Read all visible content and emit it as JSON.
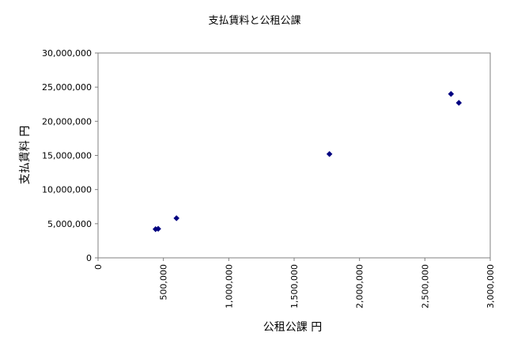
{
  "chart_data": {
    "type": "scatter",
    "title": "支払賃料と公租公課",
    "xlabel": "公租公課 円",
    "ylabel": "支払賃料 円",
    "xlim": [
      0,
      3000000
    ],
    "ylim": [
      0,
      30000000
    ],
    "x_ticks": [
      "0",
      "500,000",
      "1,000,000",
      "1,500,000",
      "2,000,000",
      "2,500,000",
      "3,000,000"
    ],
    "y_ticks": [
      "0",
      "5,000,000",
      "10,000,000",
      "15,000,000",
      "20,000,000",
      "25,000,000",
      "30,000,000"
    ],
    "series": [
      {
        "color": "#000080",
        "marker": "diamond",
        "points": [
          {
            "x": 440000,
            "y": 4200000
          },
          {
            "x": 460000,
            "y": 4250000
          },
          {
            "x": 600000,
            "y": 5800000
          },
          {
            "x": 1770000,
            "y": 15200000
          },
          {
            "x": 2700000,
            "y": 24000000
          },
          {
            "x": 2760000,
            "y": 22700000
          }
        ]
      }
    ],
    "grid": false,
    "legend": "none",
    "frame_color": "#808080"
  }
}
